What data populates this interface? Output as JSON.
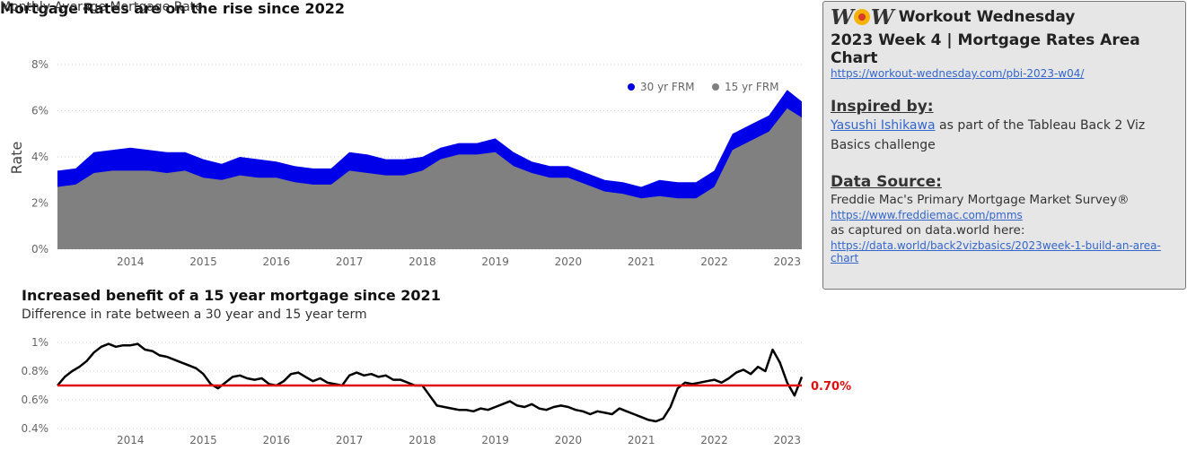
{
  "top_chart": {
    "title": "Mortgage Rates are on the rise since 2022",
    "subtitle": "Monthly Average Mortgage Rate",
    "ylabel": "Rate"
  },
  "bottom_chart": {
    "title": "Increased benefit of a 15 year mortgage since 2021",
    "subtitle": "Difference in rate between a 30 year and 15 year term",
    "reference_label": "0.70%"
  },
  "colors": {
    "frm30": "#0000e8",
    "frm15": "#808080",
    "diff_line": "#000000",
    "reference": "#e01010"
  },
  "info_panel": {
    "logo_text": "W W",
    "app_title": "Workout Wednesday",
    "week_title": "2023 Week 4 | Mortgage Rates Area Chart",
    "challenge_url": "https://workout-wednesday.com/pbi-2023-w04/",
    "inspired_heading": "Inspired by:",
    "inspired_author": "Yasushi Ishikawa",
    "inspired_text": " as part of the Tableau Back 2 Viz Basics challenge",
    "source_heading": "Data Source:",
    "source_name": "Freddie Mac's Primary Mortgage Market Survey®",
    "source_url": "https://www.freddiemac.com/pmms",
    "captured_text": "as captured on data.world here:",
    "dataworld_url": "https://data.world/back2vizbasics/2023week-1-build-an-area-chart"
  },
  "chart_data": [
    {
      "type": "area",
      "title": "Mortgage Rates are on the rise since 2022",
      "subtitle": "Monthly Average Mortgage Rate",
      "xlabel": "",
      "ylabel": "Rate",
      "x_ticks": [
        "2014",
        "2015",
        "2016",
        "2017",
        "2018",
        "2019",
        "2020",
        "2021",
        "2022",
        "2023"
      ],
      "y_ticks": [
        "0%",
        "2%",
        "4%",
        "6%",
        "8%"
      ],
      "xlim": [
        2013.0,
        2023.2
      ],
      "ylim": [
        0,
        8
      ],
      "grid": true,
      "legend_position": "top-right",
      "x": [
        2013.0,
        2013.25,
        2013.5,
        2013.75,
        2014.0,
        2014.25,
        2014.5,
        2014.75,
        2015.0,
        2015.25,
        2015.5,
        2015.75,
        2016.0,
        2016.25,
        2016.5,
        2016.75,
        2017.0,
        2017.25,
        2017.5,
        2017.75,
        2018.0,
        2018.25,
        2018.5,
        2018.75,
        2019.0,
        2019.25,
        2019.5,
        2019.75,
        2020.0,
        2020.25,
        2020.5,
        2020.75,
        2021.0,
        2021.25,
        2021.5,
        2021.75,
        2022.0,
        2022.25,
        2022.5,
        2022.75,
        2023.0,
        2023.2
      ],
      "series": [
        {
          "name": "30 yr FRM",
          "values": [
            3.4,
            3.5,
            4.2,
            4.3,
            4.4,
            4.3,
            4.2,
            4.2,
            3.9,
            3.7,
            4.0,
            3.9,
            3.8,
            3.6,
            3.5,
            3.5,
            4.2,
            4.1,
            3.9,
            3.9,
            4.0,
            4.4,
            4.6,
            4.6,
            4.8,
            4.2,
            3.8,
            3.6,
            3.6,
            3.3,
            3.0,
            2.9,
            2.7,
            3.0,
            2.9,
            2.9,
            3.4,
            5.0,
            5.4,
            5.8,
            6.9,
            6.4
          ]
        },
        {
          "name": "15 yr FRM",
          "values": [
            2.7,
            2.8,
            3.3,
            3.4,
            3.4,
            3.4,
            3.3,
            3.4,
            3.1,
            3.0,
            3.2,
            3.1,
            3.1,
            2.9,
            2.8,
            2.8,
            3.4,
            3.3,
            3.2,
            3.2,
            3.4,
            3.9,
            4.1,
            4.1,
            4.2,
            3.6,
            3.3,
            3.1,
            3.1,
            2.8,
            2.5,
            2.4,
            2.2,
            2.3,
            2.2,
            2.2,
            2.7,
            4.3,
            4.7,
            5.1,
            6.1,
            5.7
          ]
        }
      ]
    },
    {
      "type": "line",
      "title": "Increased benefit of a 15 year mortgage since 2021",
      "subtitle": "Difference in rate between a 30 year and 15 year term",
      "x_ticks": [
        "2014",
        "2015",
        "2016",
        "2017",
        "2018",
        "2019",
        "2020",
        "2021",
        "2022",
        "2023"
      ],
      "y_ticks": [
        "0.4%",
        "0.6%",
        "0.8%",
        "1%"
      ],
      "xlim": [
        2013.0,
        2023.2
      ],
      "ylim": [
        0.4,
        1.0
      ],
      "reference_line": {
        "value": 0.7,
        "label": "0.70%"
      },
      "x": [
        2013.0,
        2013.1,
        2013.2,
        2013.3,
        2013.4,
        2013.5,
        2013.6,
        2013.7,
        2013.8,
        2013.9,
        2014.0,
        2014.1,
        2014.2,
        2014.3,
        2014.4,
        2014.5,
        2014.6,
        2014.7,
        2014.8,
        2014.9,
        2015.0,
        2015.1,
        2015.2,
        2015.3,
        2015.4,
        2015.5,
        2015.6,
        2015.7,
        2015.8,
        2015.9,
        2016.0,
        2016.1,
        2016.2,
        2016.3,
        2016.4,
        2016.5,
        2016.6,
        2016.7,
        2016.8,
        2016.9,
        2017.0,
        2017.1,
        2017.2,
        2017.3,
        2017.4,
        2017.5,
        2017.6,
        2017.7,
        2017.8,
        2017.9,
        2018.0,
        2018.1,
        2018.2,
        2018.3,
        2018.4,
        2018.5,
        2018.6,
        2018.7,
        2018.8,
        2018.9,
        2019.0,
        2019.1,
        2019.2,
        2019.3,
        2019.4,
        2019.5,
        2019.6,
        2019.7,
        2019.8,
        2019.9,
        2020.0,
        2020.1,
        2020.2,
        2020.3,
        2020.4,
        2020.5,
        2020.6,
        2020.7,
        2020.8,
        2020.9,
        2021.0,
        2021.1,
        2021.2,
        2021.3,
        2021.4,
        2021.5,
        2021.6,
        2021.7,
        2021.8,
        2021.9,
        2022.0,
        2022.1,
        2022.2,
        2022.3,
        2022.4,
        2022.5,
        2022.6,
        2022.7,
        2022.8,
        2022.9,
        2023.0,
        2023.1,
        2023.2
      ],
      "series": [
        {
          "name": "Difference",
          "values": [
            0.7,
            0.76,
            0.8,
            0.83,
            0.87,
            0.93,
            0.97,
            0.99,
            0.97,
            0.98,
            0.98,
            0.99,
            0.95,
            0.94,
            0.91,
            0.9,
            0.88,
            0.86,
            0.84,
            0.82,
            0.78,
            0.71,
            0.68,
            0.72,
            0.76,
            0.77,
            0.75,
            0.74,
            0.75,
            0.71,
            0.7,
            0.73,
            0.78,
            0.79,
            0.76,
            0.73,
            0.75,
            0.72,
            0.71,
            0.7,
            0.77,
            0.79,
            0.77,
            0.78,
            0.76,
            0.77,
            0.74,
            0.74,
            0.72,
            0.7,
            0.7,
            0.63,
            0.56,
            0.55,
            0.54,
            0.53,
            0.53,
            0.52,
            0.54,
            0.53,
            0.55,
            0.57,
            0.59,
            0.56,
            0.55,
            0.57,
            0.54,
            0.53,
            0.55,
            0.56,
            0.55,
            0.53,
            0.52,
            0.5,
            0.52,
            0.51,
            0.5,
            0.54,
            0.52,
            0.5,
            0.48,
            0.46,
            0.45,
            0.47,
            0.55,
            0.68,
            0.72,
            0.71,
            0.72,
            0.73,
            0.74,
            0.72,
            0.75,
            0.79,
            0.81,
            0.78,
            0.83,
            0.8,
            0.95,
            0.86,
            0.72,
            0.63,
            0.76
          ]
        }
      ]
    }
  ]
}
